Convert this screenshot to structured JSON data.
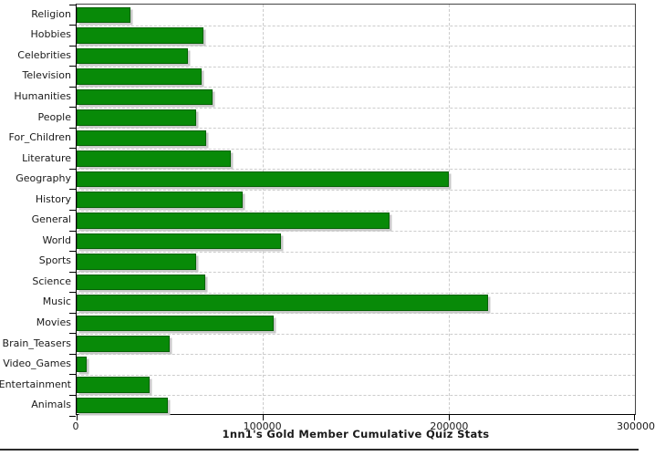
{
  "chart_data": {
    "type": "bar",
    "orientation": "horizontal",
    "title": "1nn1's Gold Member Cumulative Quiz Stats",
    "categories": [
      "Religion",
      "Hobbies",
      "Celebrities",
      "Television",
      "Humanities",
      "People",
      "For_Children",
      "Literature",
      "Geography",
      "History",
      "General",
      "World",
      "Sports",
      "Science",
      "Music",
      "Movies",
      "Brain_Teasers",
      "Video_Games",
      "Entertainment",
      "Animals"
    ],
    "values": [
      29000,
      68000,
      60000,
      67000,
      73000,
      64000,
      69500,
      83000,
      200000,
      89000,
      168000,
      110000,
      64000,
      69000,
      221000,
      106000,
      50000,
      5500,
      39000,
      49000
    ],
    "xlim": [
      0,
      300000
    ],
    "x_ticks": [
      0,
      100000,
      200000,
      300000
    ],
    "x_tick_labels": [
      "0",
      "100000",
      "200000",
      "300000"
    ],
    "xlabel": "",
    "ylabel": "",
    "grid": "dashed",
    "legend": "none",
    "colors": {
      "bar": "#088A08",
      "bar_outline": "#056105",
      "bar_shadow": "#c9c9c9",
      "gridline": "#cccccc",
      "axis": "#000000",
      "plot_border": "#444444",
      "text": "#1a1a1a",
      "bottom_rule": "#2b2b2b",
      "background": "#ffffff"
    }
  }
}
